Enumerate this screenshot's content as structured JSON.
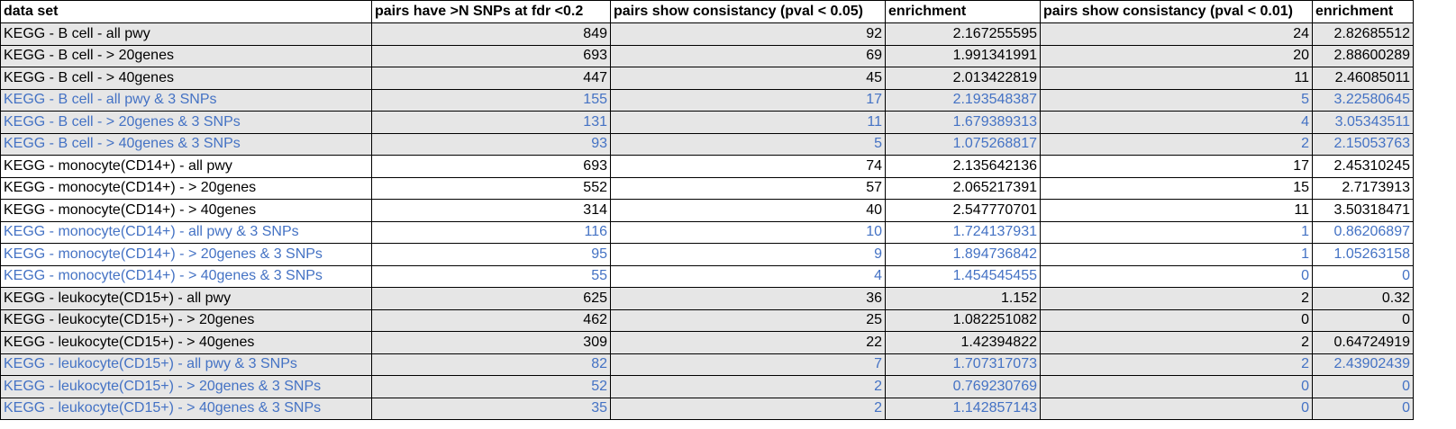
{
  "headers": [
    "data set",
    "pairs have >N SNPs at fdr <0.2",
    "pairs show consistancy (pval < 0.05)",
    "enrichment",
    "pairs show consistancy (pval < 0.01)",
    "enrichment"
  ],
  "rows": [
    {
      "cells": [
        "KEGG - B cell - all pwy",
        "849",
        "92",
        "2.167255595",
        "24",
        "2.82685512"
      ],
      "gray": true,
      "blue": false
    },
    {
      "cells": [
        "KEGG - B cell - > 20genes",
        "693",
        "69",
        "1.991341991",
        "20",
        "2.88600289"
      ],
      "gray": true,
      "blue": false
    },
    {
      "cells": [
        "KEGG - B cell - > 40genes",
        "447",
        "45",
        "2.013422819",
        "11",
        "2.46085011"
      ],
      "gray": true,
      "blue": false
    },
    {
      "cells": [
        "KEGG - B cell - all pwy & 3 SNPs",
        "155",
        "17",
        "2.193548387",
        "5",
        "3.22580645"
      ],
      "gray": true,
      "blue": true
    },
    {
      "cells": [
        "KEGG - B cell - > 20genes & 3 SNPs",
        "131",
        "11",
        "1.679389313",
        "4",
        "3.05343511"
      ],
      "gray": true,
      "blue": true
    },
    {
      "cells": [
        "KEGG - B cell - > 40genes & 3 SNPs",
        "93",
        "5",
        "1.075268817",
        "2",
        "2.15053763"
      ],
      "gray": true,
      "blue": true
    },
    {
      "cells": [
        "KEGG - monocyte(CD14+) - all pwy",
        "693",
        "74",
        "2.135642136",
        "17",
        "2.45310245"
      ],
      "gray": false,
      "blue": false
    },
    {
      "cells": [
        "KEGG - monocyte(CD14+) - > 20genes",
        "552",
        "57",
        "2.065217391",
        "15",
        "2.7173913"
      ],
      "gray": false,
      "blue": false
    },
    {
      "cells": [
        "KEGG - monocyte(CD14+) - > 40genes",
        "314",
        "40",
        "2.547770701",
        "11",
        "3.50318471"
      ],
      "gray": false,
      "blue": false
    },
    {
      "cells": [
        "KEGG - monocyte(CD14+) - all pwy & 3 SNPs",
        "116",
        "10",
        "1.724137931",
        "1",
        "0.86206897"
      ],
      "gray": false,
      "blue": true
    },
    {
      "cells": [
        "KEGG - monocyte(CD14+) - > 20genes & 3 SNPs",
        "95",
        "9",
        "1.894736842",
        "1",
        "1.05263158"
      ],
      "gray": false,
      "blue": true
    },
    {
      "cells": [
        "KEGG - monocyte(CD14+) - > 40genes & 3 SNPs",
        "55",
        "4",
        "1.454545455",
        "0",
        "0"
      ],
      "gray": false,
      "blue": true
    },
    {
      "cells": [
        "KEGG - leukocyte(CD15+) - all pwy",
        "625",
        "36",
        "1.152",
        "2",
        "0.32"
      ],
      "gray": true,
      "blue": false
    },
    {
      "cells": [
        "KEGG - leukocyte(CD15+) - > 20genes",
        "462",
        "25",
        "1.082251082",
        "0",
        "0"
      ],
      "gray": true,
      "blue": false
    },
    {
      "cells": [
        "KEGG - leukocyte(CD15+) - > 40genes",
        "309",
        "22",
        "1.42394822",
        "2",
        "0.64724919"
      ],
      "gray": true,
      "blue": false
    },
    {
      "cells": [
        "KEGG - leukocyte(CD15+) - all pwy & 3 SNPs",
        "82",
        "7",
        "1.707317073",
        "2",
        "2.43902439"
      ],
      "gray": true,
      "blue": true
    },
    {
      "cells": [
        "KEGG - leukocyte(CD15+) - > 20genes & 3 SNPs",
        "52",
        "2",
        "0.769230769",
        "0",
        "0"
      ],
      "gray": true,
      "blue": true
    },
    {
      "cells": [
        "KEGG - leukocyte(CD15+) - > 40genes & 3 SNPs",
        "35",
        "2",
        "1.142857143",
        "0",
        "0"
      ],
      "gray": true,
      "blue": true
    }
  ],
  "colors": {
    "blue_text": "#4472c4",
    "gray_fill": "#e6e6e6"
  }
}
